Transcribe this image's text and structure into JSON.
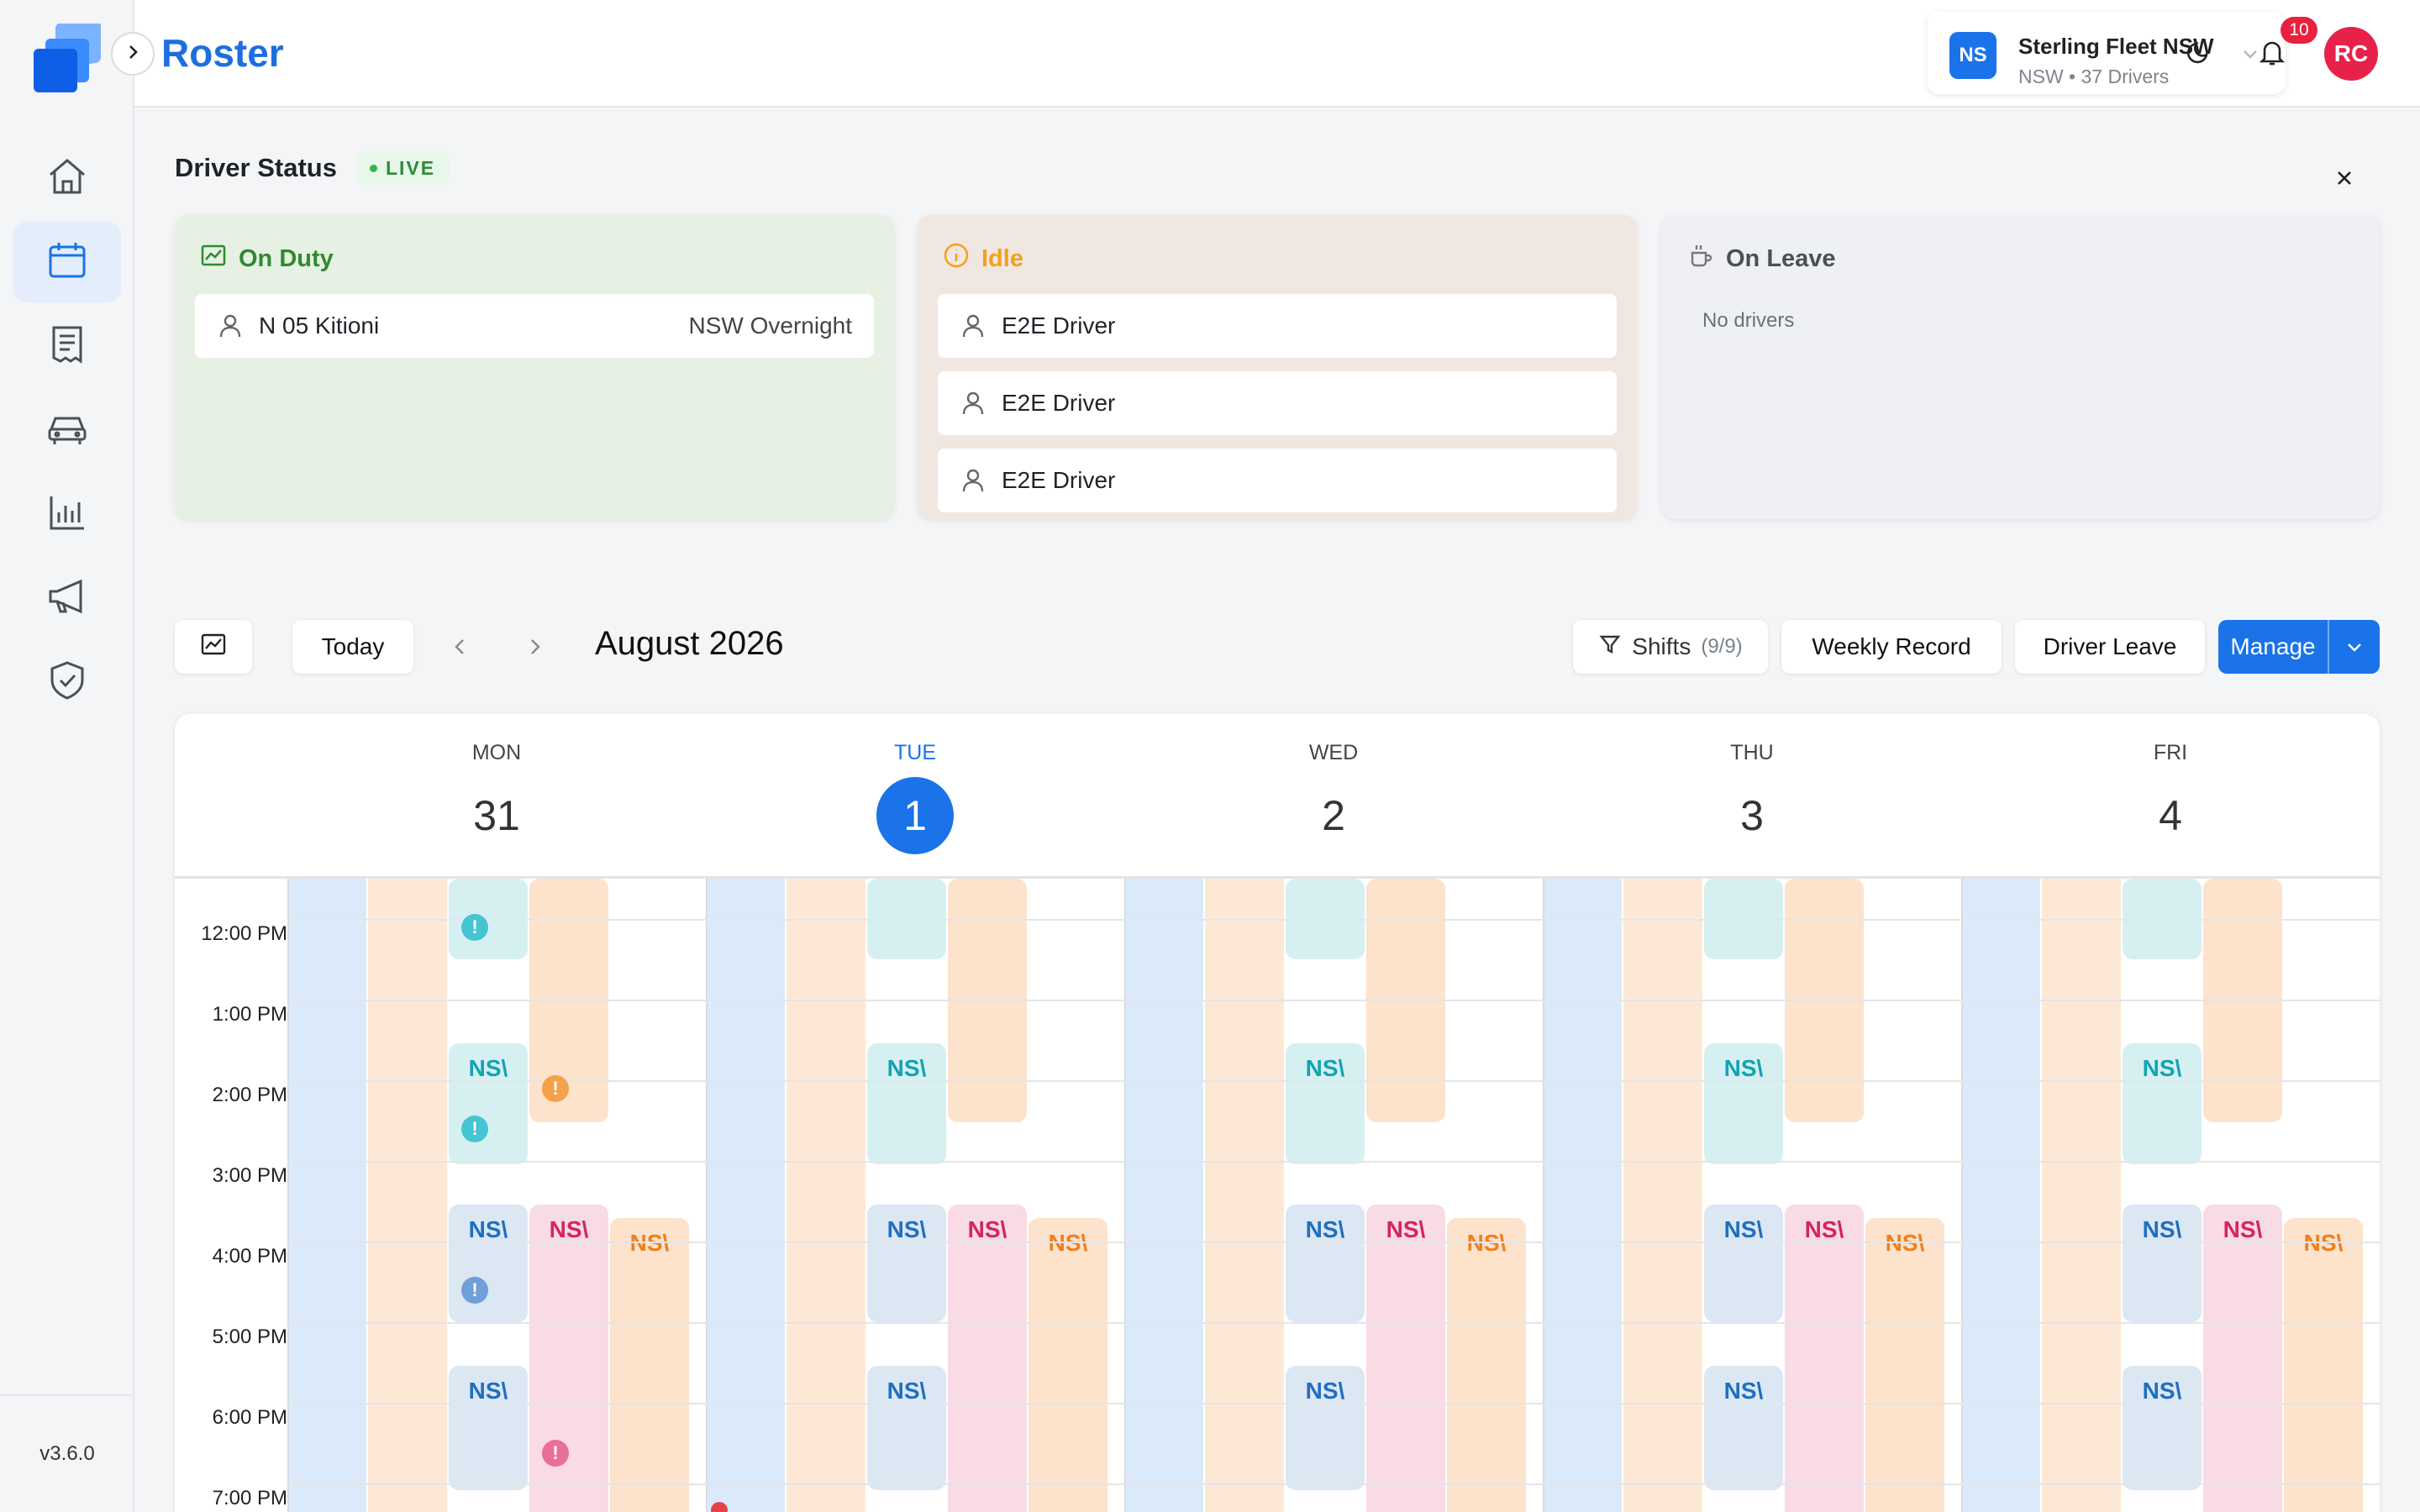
{
  "app": {
    "title": "Roster",
    "version": "v3.6.0"
  },
  "header": {
    "fleet_badge": "NS",
    "fleet_name": "Sterling Fleet NSW",
    "fleet_sub": "NSW • 37 Drivers",
    "notification_count": "10",
    "avatar_initials": "RC"
  },
  "sidebar": {
    "items": [
      {
        "icon": "home-icon",
        "active": false
      },
      {
        "icon": "calendar-icon",
        "active": true
      },
      {
        "icon": "document-icon",
        "active": false
      },
      {
        "icon": "car-icon",
        "active": false
      },
      {
        "icon": "chart-icon",
        "active": false
      },
      {
        "icon": "megaphone-icon",
        "active": false
      },
      {
        "icon": "shield-check-icon",
        "active": false
      }
    ]
  },
  "driver_status": {
    "title": "Driver Status",
    "live_label": "LIVE",
    "on_duty": {
      "title": "On Duty",
      "drivers": [
        {
          "name": "N 05 Kitioni",
          "route": "NSW Overnight"
        }
      ]
    },
    "idle": {
      "title": "Idle",
      "drivers": [
        {
          "name": "E2E Driver"
        },
        {
          "name": "E2E Driver"
        },
        {
          "name": "E2E Driver"
        }
      ]
    },
    "on_leave": {
      "title": "On Leave",
      "empty_text": "No drivers"
    }
  },
  "toolbar": {
    "today_label": "Today",
    "month_label": "August 2026",
    "shifts_label": "Shifts",
    "shifts_count": "(9/9)",
    "weekly_record_label": "Weekly Record",
    "driver_leave_label": "Driver Leave",
    "manage_label": "Manage"
  },
  "calendar": {
    "days": [
      {
        "name": "MON",
        "num": "31",
        "today": false
      },
      {
        "name": "TUE",
        "num": "1",
        "today": true
      },
      {
        "name": "WED",
        "num": "2",
        "today": false
      },
      {
        "name": "THU",
        "num": "3",
        "today": false
      },
      {
        "name": "FRI",
        "num": "4",
        "today": false
      }
    ],
    "time_labels": [
      "12:00 PM",
      "1:00 PM",
      "2:00 PM",
      "3:00 PM",
      "4:00 PM",
      "5:00 PM",
      "6:00 PM",
      "7:00 PM"
    ],
    "shift_label": "NS\\",
    "alert_glyph": "!",
    "colors": {
      "blue_lane": "#dbeafb",
      "orange_lane": "#fde8d6",
      "teal": "#d6f0f2",
      "teal_text": "#12a3b4",
      "navy": "#dce7f4",
      "navy_text": "#1f6fbf",
      "pink": "#f9dbe5",
      "pink_text": "#d4245e",
      "orange": "#fde2cc",
      "orange_text": "#f07f1a",
      "teal_alert": "#45c4d2",
      "orange_alert": "#f5a04a",
      "navy_alert": "#6f9fd8",
      "pink_alert": "#ea6f98"
    }
  }
}
